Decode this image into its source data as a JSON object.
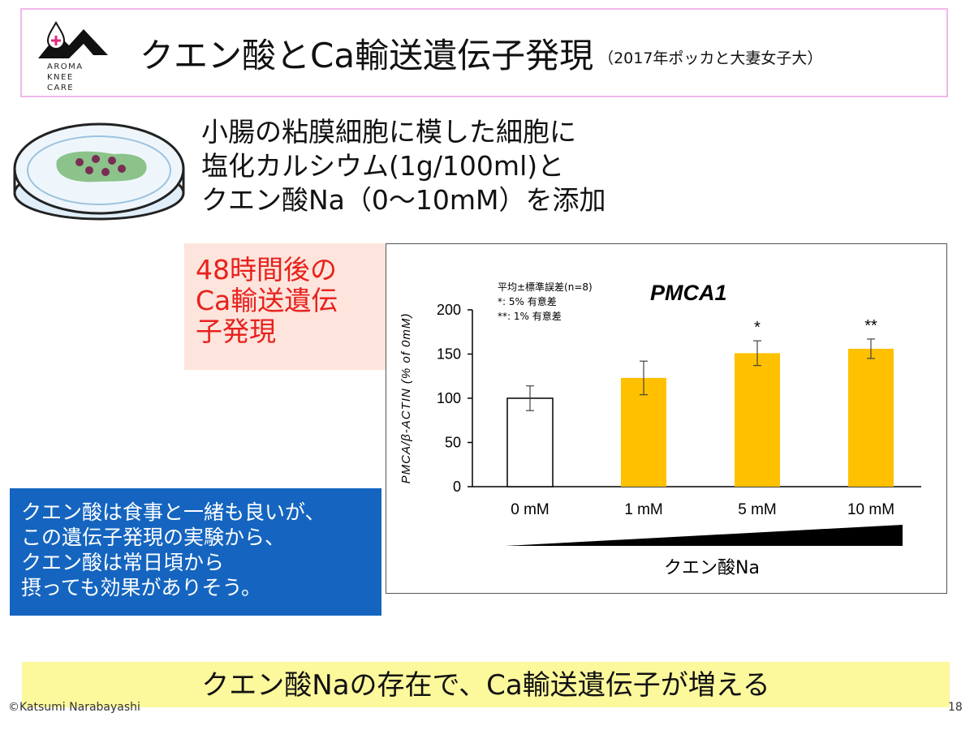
{
  "header": {
    "logo_lines": [
      "AROMA",
      "KNEE",
      "CARE"
    ],
    "title": "クエン酸とCa輸送遺伝子発現",
    "title_sub": "（2017年ポッカと大妻女子大）"
  },
  "description": [
    "小腸の粘膜細胞に模した細胞に",
    "塩化カルシウム(1g/100ml)と",
    "クエン酸Na（0～10mM）を添加"
  ],
  "note_red": [
    "48時間後の",
    "Ca輸送遺伝",
    "子発現"
  ],
  "note_blue": [
    "クエン酸は食事と一緒も良いが、",
    "この遺伝子発現の実験から、",
    "クエン酸は常日頃から",
    "摂っても効果がありそう。"
  ],
  "banner": "クエン酸Naの存在で、Ca輸送遺伝子が増える",
  "footer": {
    "copyright": "©Katsumi Narabayashi",
    "page": "18"
  },
  "chart_data": {
    "type": "bar",
    "title": "PMCA1",
    "ylabel": "PMCA/β-ACTIN (% of 0mM)",
    "xlabel": "クエン酸Na",
    "ylim": [
      0,
      200
    ],
    "yticks": [
      0,
      50,
      100,
      150,
      200
    ],
    "categories": [
      "0 mM",
      "1 mM",
      "5 mM",
      "10 mM"
    ],
    "values": [
      100,
      123,
      151,
      156
    ],
    "errors": [
      14,
      19,
      14,
      11
    ],
    "significance": [
      "",
      "",
      "*",
      "**"
    ],
    "legend_lines": [
      "平均±標準誤差(n=8)",
      "*:  5%  有意差",
      "**:  1%  有意差"
    ],
    "colors": {
      "control": "#ffffff",
      "treated": "#ffc000",
      "outline": "#000000"
    }
  }
}
